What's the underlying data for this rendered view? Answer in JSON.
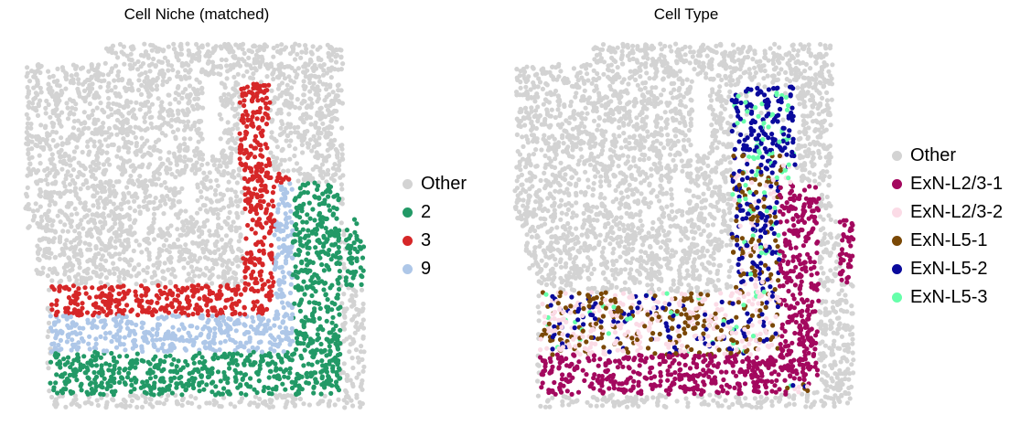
{
  "chart_data": [
    {
      "type": "scatter",
      "title": "Cell Niche (matched)",
      "xlabel": "",
      "ylabel": "",
      "axes_visible": false,
      "legend": {
        "placement": "right",
        "entries": [
          {
            "label": "Other",
            "color": "#d3d3d3"
          },
          {
            "label": "2",
            "color": "#229966"
          },
          {
            "label": "3",
            "color": "#d62728"
          },
          {
            "label": "9",
            "color": "#aec7e8"
          }
        ]
      }
    },
    {
      "type": "scatter",
      "title": "Cell Type",
      "xlabel": "",
      "ylabel": "",
      "axes_visible": false,
      "legend": {
        "placement": "right",
        "entries": [
          {
            "label": "Other",
            "color": "#d3d3d3"
          },
          {
            "label": "ExN-L2/3-1",
            "color": "#a3085e"
          },
          {
            "label": "ExN-L2/3-2",
            "color": "#fbdbe6"
          },
          {
            "label": "ExN-L5-1",
            "color": "#7a4806"
          },
          {
            "label": "ExN-L5-2",
            "color": "#0a0a9c"
          },
          {
            "label": "ExN-L5-3",
            "color": "#66ffaa"
          }
        ]
      }
    }
  ]
}
